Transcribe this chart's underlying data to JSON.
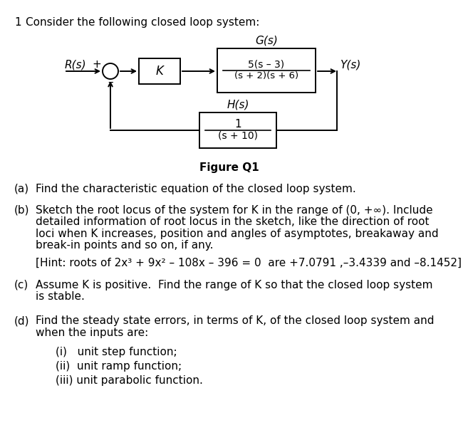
{
  "bg_color": "#ffffff",
  "q_num": "1",
  "q_title": "Consider the following closed loop system:",
  "diagram": {
    "Gs_label": "G(s)",
    "Gs_num": "5(s – 3)",
    "Gs_den": "(s + 2)(s + 6)",
    "K_label": "K",
    "Hs_label": "H(s)",
    "Hs_num": "1",
    "Hs_den": "(s + 10)",
    "Rs_label": "R(s)",
    "Ys_label": "Y(s)",
    "plus": "+",
    "minus": "–",
    "figure_caption": "Figure Q1"
  },
  "part_a_label": "(a)",
  "part_a_text": "Find the characteristic equation of the closed loop system.",
  "part_b_label": "(b)",
  "part_b_lines": [
    "Sketch the root locus of the system for K in the range of (0, +∞). Include",
    "detailed information of root locus in the sketch, like the direction of root",
    "loci when K increases, position and angles of asymptotes, breakaway and",
    "break-in points and so on, if any."
  ],
  "part_b_hint": "[Hint: roots of 2x³ + 9x² – 108x – 396 = 0  are +7.0791 ,–3.4339 and –8.1452]",
  "part_c_label": "(c)",
  "part_c_lines": [
    "Assume K is positive.  Find the range of K so that the closed loop system",
    "is stable."
  ],
  "part_d_label": "(d)",
  "part_d_lines": [
    "Find the steady state errors, in terms of K, of the closed loop system and",
    "when the inputs are:"
  ],
  "part_d_subitems": [
    "(i)   unit step function;",
    "(ii)  unit ramp function;",
    "(iii) unit parabolic function."
  ],
  "fs": 11.0,
  "fs_small": 10.0,
  "fs_smaller": 9.5
}
